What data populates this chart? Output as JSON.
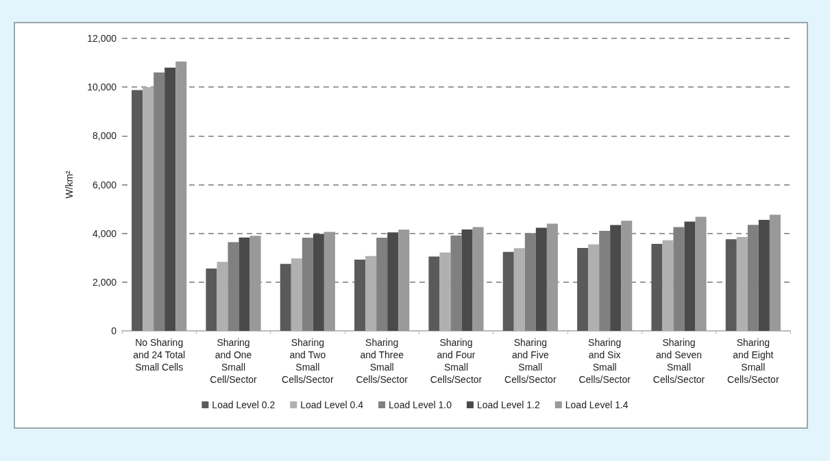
{
  "chart_data": {
    "type": "bar",
    "ylabel": "W/km²",
    "categories": [
      "No Sharing\nand 24 Total\nSmall Cells",
      "Sharing\nand One\nSmall\nCell/Sector",
      "Sharing\nand Two\nSmall\nCells/Sector",
      "Sharing\nand Three\nSmall\nCells/Sector",
      "Sharing\nand Four\nSmall\nCells/Sector",
      "Sharing\nand Five\nSmall\nCells/Sector",
      "Sharing\nand Six\nSmall\nCells/Sector",
      "Sharing\nand Seven\nSmall\nCells/Sector",
      "Sharing\nand Eight\nSmall\nCells/Sector"
    ],
    "series": [
      {
        "name": "Load Level 0.2",
        "color": "#5a5a5a",
        "values": [
          9880,
          2560,
          2750,
          2920,
          3050,
          3240,
          3400,
          3570,
          3760
        ]
      },
      {
        "name": "Load Level 0.4",
        "color": "#b0b0b0",
        "values": [
          10000,
          2830,
          2970,
          3070,
          3220,
          3390,
          3550,
          3720,
          3850
        ]
      },
      {
        "name": "Load Level 1.0",
        "color": "#808080",
        "values": [
          10600,
          3640,
          3820,
          3820,
          3910,
          4010,
          4100,
          4260,
          4350
        ]
      },
      {
        "name": "Load Level 1.2",
        "color": "#4a4a4a",
        "values": [
          10800,
          3830,
          3980,
          4040,
          4160,
          4230,
          4340,
          4480,
          4550
        ]
      },
      {
        "name": "Load Level 1.4",
        "color": "#999999",
        "values": [
          11050,
          3900,
          4060,
          4150,
          4260,
          4400,
          4520,
          4680,
          4760
        ]
      }
    ],
    "ylim": [
      0,
      12000
    ],
    "yticks": [
      0,
      {
        "value": 2000,
        "label": "2,000"
      },
      {
        "value": 4000,
        "label": "4,000"
      },
      {
        "value": 6000,
        "label": "6,000"
      },
      {
        "value": 8000,
        "label": "8,000"
      },
      {
        "value": 10000,
        "label": "10,000"
      },
      {
        "value": 12000,
        "label": "12,000"
      }
    ],
    "grid": "y",
    "legend": "bottom"
  }
}
